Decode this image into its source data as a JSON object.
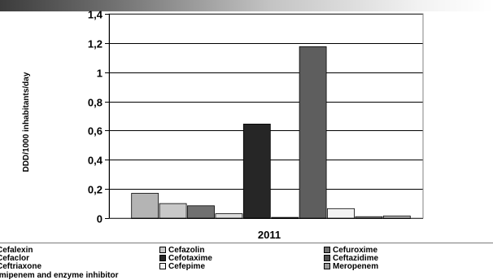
{
  "chart_data": {
    "type": "bar",
    "ylabel": "DDD/1000 inhabitants/day",
    "xlabel": "",
    "categories": [
      "2011"
    ],
    "ylim": [
      0,
      1.4
    ],
    "yticks": [
      0,
      0.2,
      0.4,
      0.6,
      0.8,
      1,
      1.2,
      1.4
    ],
    "ytick_labels": [
      "0",
      "0,2",
      "0,4",
      "0,6",
      "0,8",
      "1",
      "1,2",
      "1,4"
    ],
    "grid": true,
    "legend_position": "bottom",
    "series": [
      {
        "name": "Cefalexin",
        "value": 0.17,
        "color": "#b4b4b4"
      },
      {
        "name": "Cefazolin",
        "value": 0.1,
        "color": "#c8c8c8"
      },
      {
        "name": "Cefuroxime",
        "value": 0.085,
        "color": "#707070"
      },
      {
        "name": "Cefaclor",
        "value": 0.03,
        "color": "#dcdcdc"
      },
      {
        "name": "Cefotaxime",
        "value": 0.645,
        "color": "#262626"
      },
      {
        "name": "Ceftazidime",
        "value": 0.005,
        "color": "#505050"
      },
      {
        "name": "Ceftriaxone",
        "value": 1.175,
        "color": "#5e5e5e"
      },
      {
        "name": "Cefepime",
        "value": 0.065,
        "color": "#f2f2f2"
      },
      {
        "name": "Meropenem",
        "value": 0.01,
        "color": "#9a9a9a"
      },
      {
        "name": "Imipenem and enzyme inhibitor",
        "value": 0.015,
        "color": "#bebebe"
      }
    ]
  }
}
